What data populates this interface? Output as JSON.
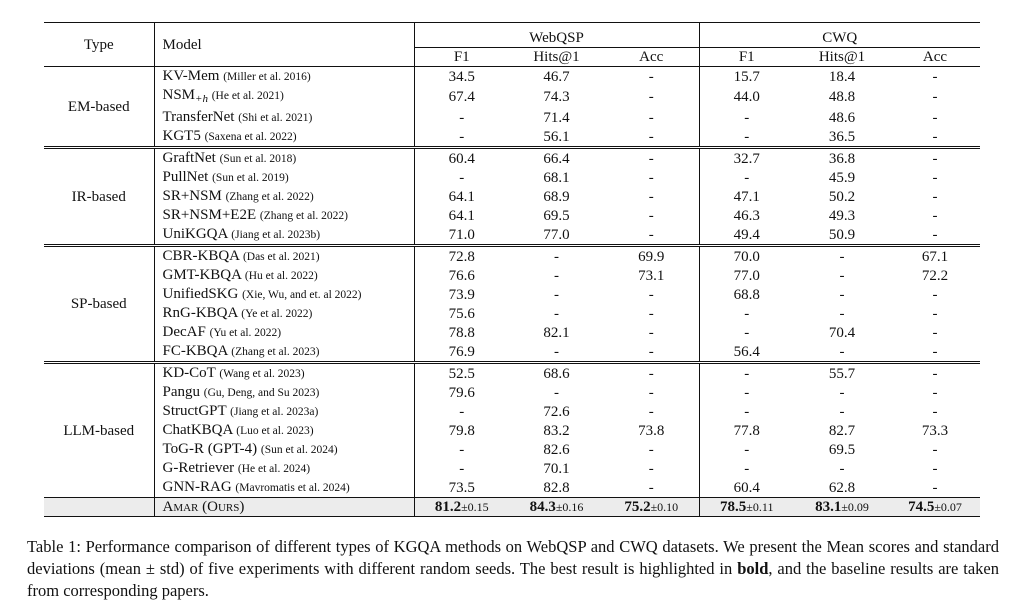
{
  "header": {
    "type": "Type",
    "model": "Model",
    "datasets": [
      "WebQSP",
      "CWQ"
    ],
    "metrics": [
      "F1",
      "Hits@1",
      "Acc",
      "F1",
      "Hits@1",
      "Acc"
    ]
  },
  "groups": [
    {
      "type": "EM-based",
      "rows": [
        {
          "model": "KV-Mem",
          "sub": "",
          "cite": "(Miller et al. 2016)",
          "vals": [
            "34.5",
            "46.7",
            "-",
            "15.7",
            "18.4",
            "-"
          ]
        },
        {
          "model": "NSM",
          "sub": "+h",
          "cite": "(He et al. 2021)",
          "vals": [
            "67.4",
            "74.3",
            "-",
            "44.0",
            "48.8",
            "-"
          ]
        },
        {
          "model": "TransferNet",
          "sub": "",
          "cite": "(Shi et al. 2021)",
          "vals": [
            "-",
            "71.4",
            "-",
            "-",
            "48.6",
            "-"
          ]
        },
        {
          "model": "KGT5",
          "sub": "",
          "cite": "(Saxena et al. 2022)",
          "vals": [
            "-",
            "56.1",
            "-",
            "-",
            "36.5",
            "-"
          ]
        }
      ]
    },
    {
      "type": "IR-based",
      "rows": [
        {
          "model": "GraftNet",
          "sub": "",
          "cite": "(Sun et al. 2018)",
          "vals": [
            "60.4",
            "66.4",
            "-",
            "32.7",
            "36.8",
            "-"
          ]
        },
        {
          "model": "PullNet",
          "sub": "",
          "cite": "(Sun et al. 2019)",
          "vals": [
            "-",
            "68.1",
            "-",
            "-",
            "45.9",
            "-"
          ]
        },
        {
          "model": "SR+NSM",
          "sub": "",
          "cite": "(Zhang et al. 2022)",
          "vals": [
            "64.1",
            "68.9",
            "-",
            "47.1",
            "50.2",
            "-"
          ]
        },
        {
          "model": "SR+NSM+E2E",
          "sub": "",
          "cite": "(Zhang et al. 2022)",
          "vals": [
            "64.1",
            "69.5",
            "-",
            "46.3",
            "49.3",
            "-"
          ]
        },
        {
          "model": "UniKGQA",
          "sub": "",
          "cite": "(Jiang et al. 2023b)",
          "vals": [
            "71.0",
            "77.0",
            "-",
            "49.4",
            "50.9",
            "-"
          ]
        }
      ]
    },
    {
      "type": "SP-based",
      "rows": [
        {
          "model": "CBR-KBQA",
          "sub": "",
          "cite": "(Das et al. 2021)",
          "vals": [
            "72.8",
            "-",
            "69.9",
            "70.0",
            "-",
            "67.1"
          ]
        },
        {
          "model": "GMT-KBQA",
          "sub": "",
          "cite": "(Hu et al. 2022)",
          "vals": [
            "76.6",
            "-",
            "73.1",
            "77.0",
            "-",
            "72.2"
          ]
        },
        {
          "model": "UnifiedSKG",
          "sub": "",
          "cite": "(Xie, Wu, and et. al 2022)",
          "vals": [
            "73.9",
            "-",
            "-",
            "68.8",
            "-",
            "-"
          ]
        },
        {
          "model": "RnG-KBQA",
          "sub": "",
          "cite": "(Ye et al. 2022)",
          "vals": [
            "75.6",
            "-",
            "-",
            "-",
            "-",
            "-"
          ]
        },
        {
          "model": "DecAF",
          "sub": "",
          "cite": "(Yu et al. 2022)",
          "vals": [
            "78.8",
            "82.1",
            "-",
            "-",
            "70.4",
            "-"
          ]
        },
        {
          "model": "FC-KBQA",
          "sub": "",
          "cite": "(Zhang et al. 2023)",
          "vals": [
            "76.9",
            "-",
            "-",
            "56.4",
            "-",
            "-"
          ]
        }
      ]
    },
    {
      "type": "LLM-based",
      "rows": [
        {
          "model": "KD-CoT",
          "sub": "",
          "cite": "(Wang et al. 2023)",
          "vals": [
            "52.5",
            "68.6",
            "-",
            "-",
            "55.7",
            "-"
          ]
        },
        {
          "model": "Pangu",
          "sub": "",
          "cite": "(Gu, Deng, and Su 2023)",
          "vals": [
            "79.6",
            "-",
            "-",
            "-",
            "-",
            "-"
          ]
        },
        {
          "model": "StructGPT",
          "sub": "",
          "cite": "(Jiang et al. 2023a)",
          "vals": [
            "-",
            "72.6",
            "-",
            "-",
            "-",
            "-"
          ]
        },
        {
          "model": "ChatKBQA",
          "sub": "",
          "cite": "(Luo et al. 2023)",
          "vals": [
            "79.8",
            "83.2",
            "73.8",
            "77.8",
            "82.7",
            "73.3"
          ]
        },
        {
          "model": "ToG-R (GPT-4)",
          "sub": "",
          "cite": "(Sun et al. 2024)",
          "vals": [
            "-",
            "82.6",
            "-",
            "-",
            "69.5",
            "-"
          ]
        },
        {
          "model": "G-Retriever",
          "sub": "",
          "cite": "(He et al. 2024)",
          "vals": [
            "-",
            "70.1",
            "-",
            "-",
            "-",
            "-"
          ]
        },
        {
          "model": "GNN-RAG",
          "sub": "",
          "cite": "(Mavromatis et al. 2024)",
          "vals": [
            "73.5",
            "82.8",
            "-",
            "60.4",
            "62.8",
            "-"
          ]
        }
      ]
    }
  ],
  "ours": {
    "model": "Amar (Ours)",
    "vals": [
      {
        "mean": "81.2",
        "std": "±0.15"
      },
      {
        "mean": "84.3",
        "std": "±0.16"
      },
      {
        "mean": "75.2",
        "std": "±0.10"
      },
      {
        "mean": "78.5",
        "std": "±0.11"
      },
      {
        "mean": "83.1",
        "std": "±0.09"
      },
      {
        "mean": "74.5",
        "std": "±0.07"
      }
    ]
  },
  "caption": {
    "part1": "Table 1: Performance comparison of different types of KGQA methods on WebQSP and CWQ datasets. We present the Mean scores and standard deviations (mean ± std) of five experiments with different random seeds. The best result is highlighted in ",
    "bold": "bold",
    "part2": ", and the baseline results are taken from corresponding papers."
  }
}
